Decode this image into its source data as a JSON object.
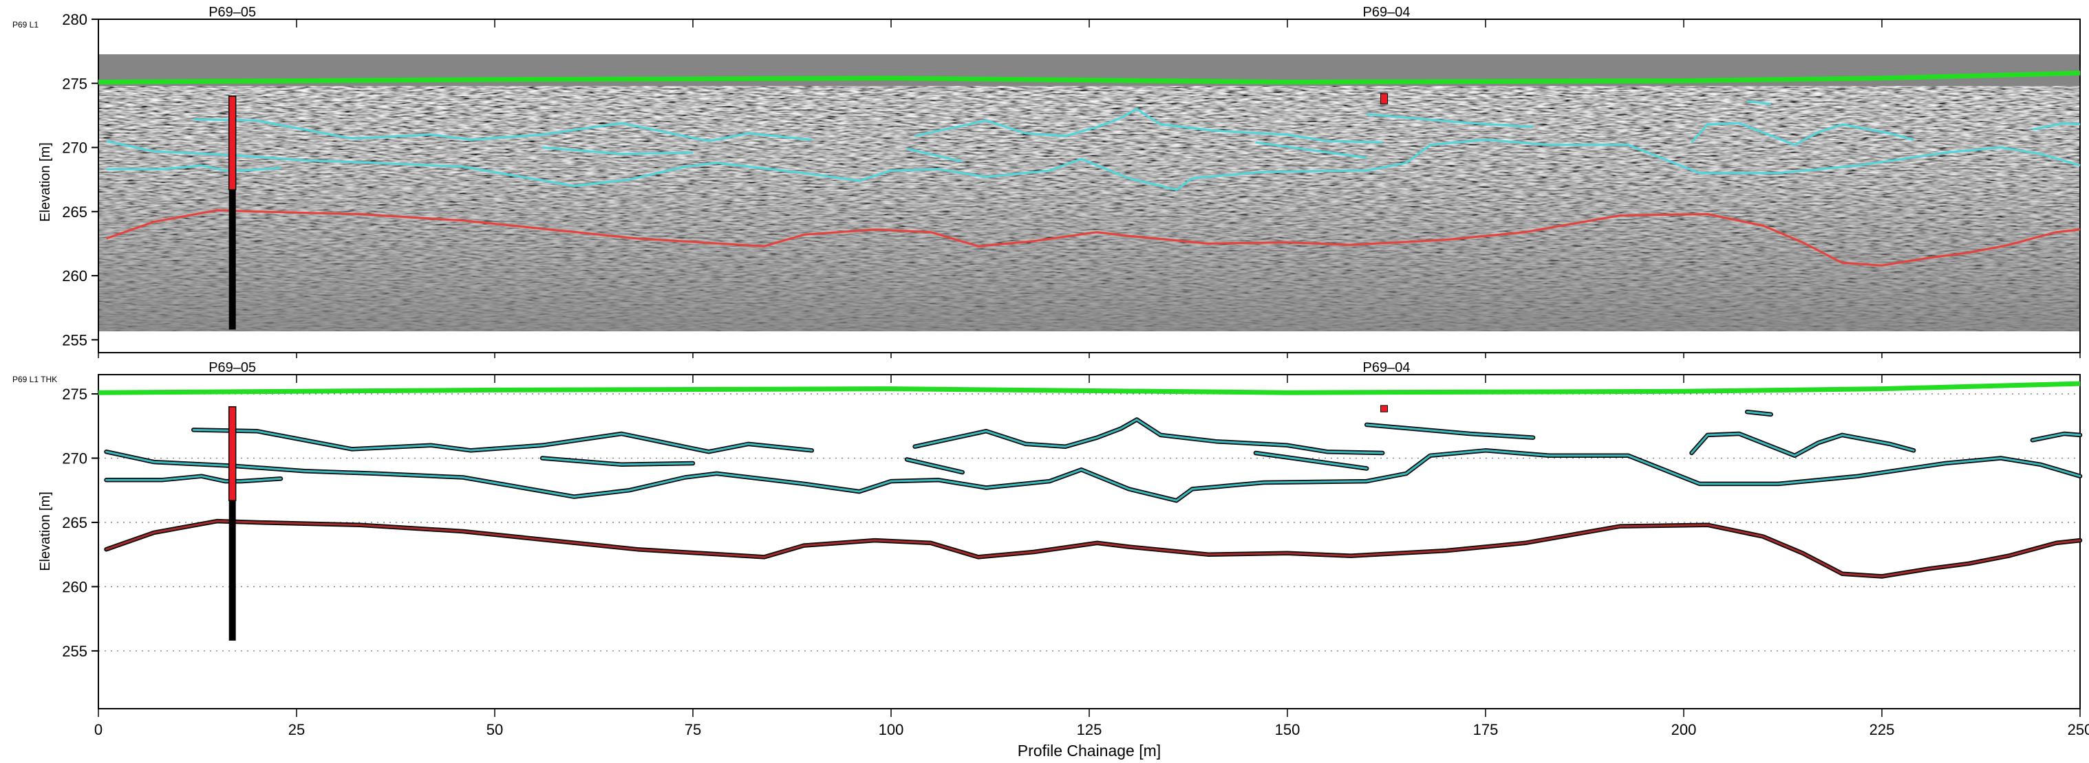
{
  "chart_data": [
    {
      "type": "line",
      "panel_tag": "P69 L1",
      "ylabel": "Elevation [m]",
      "xlim": [
        0,
        250
      ],
      "ylim": [
        254,
        280
      ],
      "yticks": [
        255,
        260,
        265,
        270,
        275,
        280
      ],
      "grid": false,
      "background": "gpr-radargram",
      "markers": [
        {
          "label": "P69–05",
          "x": 16.9
        },
        {
          "label": "P69–04",
          "x": 162.5
        }
      ],
      "borehole": {
        "x": 16.9,
        "top": 274,
        "red_bottom": 266.7,
        "bottom": 255.8
      },
      "small_box": {
        "x": 162.2,
        "top": 274.2,
        "bottom": 273.4
      },
      "surface": {
        "color": "#22dd22",
        "x": [
          0,
          50,
          100,
          150,
          200,
          225,
          250
        ],
        "y": [
          275.1,
          275.3,
          275.4,
          275.1,
          275.2,
          275.4,
          275.8
        ]
      },
      "series": [
        {
          "color": "#4fd7dc",
          "x": [
            12,
            20,
            32,
            42,
            47,
            56,
            66,
            77,
            82,
            90
          ],
          "y": [
            272.2,
            272.1,
            270.7,
            271.0,
            270.6,
            271.0,
            271.9,
            270.5,
            271.1,
            270.6
          ]
        },
        {
          "color": "#4fd7dc",
          "x": [
            1,
            7,
            17,
            26,
            35,
            46,
            60,
            67,
            74,
            78,
            89,
            96,
            100,
            106,
            112,
            120,
            124,
            130,
            136,
            138,
            147,
            160,
            165,
            168,
            175,
            183,
            193,
            202,
            212,
            222,
            233,
            240,
            245,
            250
          ],
          "y": [
            270.5,
            269.7,
            269.4,
            269.0,
            268.8,
            268.5,
            267.0,
            267.5,
            268.5,
            268.8,
            268.0,
            267.4,
            268.2,
            268.3,
            267.7,
            268.2,
            269.1,
            267.6,
            266.7,
            267.6,
            268.1,
            268.2,
            268.8,
            270.2,
            270.6,
            270.2,
            270.2,
            268.0,
            268.0,
            268.6,
            269.6,
            270.0,
            269.5,
            268.6
          ]
        },
        {
          "color": "#4fd7dc",
          "x": [
            1,
            8,
            13,
            16,
            18,
            23
          ],
          "y": [
            268.3,
            268.3,
            268.6,
            268.2,
            268.2,
            268.4
          ]
        },
        {
          "color": "#4fd7dc",
          "x": [
            56,
            66,
            75
          ],
          "y": [
            270.0,
            269.5,
            269.6
          ]
        },
        {
          "color": "#4fd7dc",
          "x": [
            103,
            112,
            117,
            122,
            126,
            129,
            131,
            134,
            141,
            150,
            155,
            162
          ],
          "y": [
            270.9,
            272.1,
            271.1,
            270.9,
            271.6,
            272.3,
            273.0,
            271.8,
            271.3,
            271.0,
            270.5,
            270.4
          ]
        },
        {
          "color": "#4fd7dc",
          "x": [
            102,
            109
          ],
          "y": [
            269.9,
            268.9
          ]
        },
        {
          "color": "#4fd7dc",
          "x": [
            146,
            160
          ],
          "y": [
            270.4,
            269.2
          ]
        },
        {
          "color": "#4fd7dc",
          "x": [
            160,
            173,
            181
          ],
          "y": [
            272.6,
            271.9,
            271.6
          ]
        },
        {
          "color": "#4fd7dc",
          "x": [
            208,
            211
          ],
          "y": [
            273.6,
            273.4
          ]
        },
        {
          "color": "#4fd7dc",
          "x": [
            201,
            203,
            207,
            214,
            217,
            220,
            226,
            229
          ],
          "y": [
            270.4,
            271.8,
            271.9,
            270.2,
            271.2,
            271.8,
            271.1,
            270.6
          ]
        },
        {
          "color": "#4fd7dc",
          "x": [
            244,
            248,
            250
          ],
          "y": [
            271.4,
            271.9,
            271.8
          ]
        },
        {
          "color": "#e8413b",
          "x": [
            1,
            7,
            15,
            20,
            33,
            46,
            68,
            84,
            89,
            98,
            105,
            111,
            118,
            126,
            130,
            140,
            150,
            158,
            170,
            180,
            192,
            203,
            210,
            215,
            220,
            225,
            231,
            236,
            241,
            247,
            250
          ],
          "y": [
            262.9,
            264.2,
            265.1,
            265.0,
            264.8,
            264.3,
            262.9,
            262.3,
            263.2,
            263.6,
            263.4,
            262.3,
            262.7,
            263.4,
            263.1,
            262.5,
            262.6,
            262.4,
            262.8,
            263.4,
            264.7,
            264.8,
            263.9,
            262.6,
            261.0,
            260.8,
            261.4,
            261.8,
            262.4,
            263.4,
            263.6
          ]
        }
      ]
    },
    {
      "type": "line",
      "panel_tag": "P69 L1 THK",
      "xlabel": "Profile Chainage [m]",
      "ylabel": "Elevation [m]",
      "xlim": [
        0,
        250
      ],
      "ylim": [
        250.5,
        276.5
      ],
      "xticks": [
        0,
        25,
        50,
        75,
        100,
        125,
        150,
        175,
        200,
        225,
        250
      ],
      "yticks": [
        255,
        260,
        265,
        270,
        275
      ],
      "grid": "dotted-horizontal",
      "markers": [
        {
          "label": "P69–05",
          "x": 16.9
        },
        {
          "label": "P69–04",
          "x": 162.5
        }
      ],
      "borehole": {
        "x": 16.9,
        "top": 274,
        "red_bottom": 266.7,
        "bottom": 255.8
      },
      "small_box": {
        "x": 162.2,
        "top": 274.1,
        "bottom": 273.6
      },
      "surface": {
        "color": "#22dd22",
        "x": [
          0,
          50,
          100,
          150,
          200,
          225,
          250
        ],
        "y": [
          275.1,
          275.3,
          275.4,
          275.1,
          275.2,
          275.4,
          275.8
        ]
      },
      "series": [
        {
          "color": "#3ab8bd",
          "x": [
            12,
            20,
            32,
            42,
            47,
            56,
            66,
            77,
            82,
            90
          ],
          "y": [
            272.2,
            272.1,
            270.7,
            271.0,
            270.6,
            271.0,
            271.9,
            270.5,
            271.1,
            270.6
          ]
        },
        {
          "color": "#3ab8bd",
          "x": [
            1,
            7,
            17,
            26,
            35,
            46,
            60,
            67,
            74,
            78,
            89,
            96,
            100,
            106,
            112,
            120,
            124,
            130,
            136,
            138,
            147,
            160,
            165,
            168,
            175,
            183,
            193,
            202,
            212,
            222,
            233,
            240,
            245,
            250
          ],
          "y": [
            270.5,
            269.7,
            269.4,
            269.0,
            268.8,
            268.5,
            267.0,
            267.5,
            268.5,
            268.8,
            268.0,
            267.4,
            268.2,
            268.3,
            267.7,
            268.2,
            269.1,
            267.6,
            266.7,
            267.6,
            268.1,
            268.2,
            268.8,
            270.2,
            270.6,
            270.2,
            270.2,
            268.0,
            268.0,
            268.6,
            269.6,
            270.0,
            269.5,
            268.6
          ]
        },
        {
          "color": "#3ab8bd",
          "x": [
            1,
            8,
            13,
            16,
            18,
            23
          ],
          "y": [
            268.3,
            268.3,
            268.6,
            268.2,
            268.2,
            268.4
          ]
        },
        {
          "color": "#3ab8bd",
          "x": [
            56,
            66,
            75
          ],
          "y": [
            270.0,
            269.5,
            269.6
          ]
        },
        {
          "color": "#3ab8bd",
          "x": [
            103,
            112,
            117,
            122,
            126,
            129,
            131,
            134,
            141,
            150,
            155,
            162
          ],
          "y": [
            270.9,
            272.1,
            271.1,
            270.9,
            271.6,
            272.3,
            273.0,
            271.8,
            271.3,
            271.0,
            270.5,
            270.4
          ]
        },
        {
          "color": "#3ab8bd",
          "x": [
            102,
            109
          ],
          "y": [
            269.9,
            268.9
          ]
        },
        {
          "color": "#3ab8bd",
          "x": [
            146,
            160
          ],
          "y": [
            270.4,
            269.2
          ]
        },
        {
          "color": "#3ab8bd",
          "x": [
            160,
            173,
            181
          ],
          "y": [
            272.6,
            271.9,
            271.6
          ]
        },
        {
          "color": "#3ab8bd",
          "x": [
            208,
            211
          ],
          "y": [
            273.6,
            273.4
          ]
        },
        {
          "color": "#3ab8bd",
          "x": [
            201,
            203,
            207,
            214,
            217,
            220,
            226,
            229
          ],
          "y": [
            270.4,
            271.8,
            271.9,
            270.2,
            271.2,
            271.8,
            271.1,
            270.6
          ]
        },
        {
          "color": "#3ab8bd",
          "x": [
            244,
            248,
            250
          ],
          "y": [
            271.4,
            271.9,
            271.8
          ]
        },
        {
          "color": "#a52a2a",
          "x": [
            1,
            7,
            15,
            20,
            33,
            46,
            68,
            84,
            89,
            98,
            105,
            111,
            118,
            126,
            130,
            140,
            150,
            158,
            170,
            180,
            192,
            203,
            210,
            215,
            220,
            225,
            231,
            236,
            241,
            247,
            250
          ],
          "y": [
            262.9,
            264.2,
            265.1,
            265.0,
            264.8,
            264.3,
            262.9,
            262.3,
            263.2,
            263.6,
            263.4,
            262.3,
            262.7,
            263.4,
            263.1,
            262.5,
            262.6,
            262.4,
            262.8,
            263.4,
            264.7,
            264.8,
            263.9,
            262.6,
            261.0,
            260.8,
            261.4,
            261.8,
            262.4,
            263.4,
            263.6
          ]
        }
      ]
    }
  ]
}
